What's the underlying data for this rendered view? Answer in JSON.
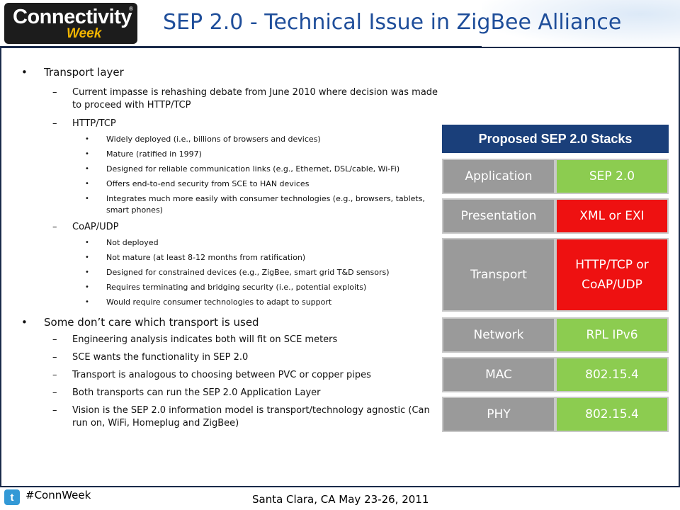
{
  "header": {
    "logo_main": "Connectivity",
    "logo_sub": "Week",
    "logo_tm": "®",
    "title": "SEP 2.0 - Technical Issue in ZigBee Alliance"
  },
  "content": {
    "transport_heading": "Transport layer",
    "impasse": "Current impasse is rehashing debate from June 2010 where decision was made to proceed with HTTP/TCP",
    "http_heading": "HTTP/TCP",
    "http_items": [
      "Widely deployed (i.e., billions of browsers and devices)",
      "Mature (ratified in 1997)",
      "Designed for reliable communication links (e.g., Ethernet, DSL/cable, Wi-Fi)",
      "Offers end-to-end security from SCE to HAN devices",
      "Integrates much more easily with consumer technologies (e.g., browsers, tablets, smart phones)"
    ],
    "coap_heading": "CoAP/UDP",
    "coap_items": [
      "Not deployed",
      "Not mature (at least 8-12 months from ratification)",
      "Designed for constrained devices (e.g., ZigBee, smart grid T&D sensors)",
      "Requires terminating and bridging security (i.e., potential exploits)",
      "Would require consumer technologies to adapt to support"
    ],
    "care_heading": "Some don’t care which transport is used",
    "care_items": [
      "Engineering analysis indicates both will fit on SCE meters",
      "SCE wants the functionality in SEP 2.0",
      "Transport is analogous to choosing between PVC or copper pipes",
      "Both transports can run the SEP 2.0 Application Layer",
      "Vision is the SEP 2.0 information model is transport/technology agnostic (Can run on, WiFi, Homeplug and ZigBee)"
    ]
  },
  "stack": {
    "title": "Proposed SEP 2.0 Stacks",
    "layers": [
      {
        "layer": "Application",
        "value": "SEP 2.0",
        "color": "#8ccc50"
      },
      {
        "layer": "Presentation",
        "value": "XML or EXI",
        "color": "#ee1111"
      },
      {
        "layer": "Transport",
        "value": "HTTP/TCP or CoAP/UDP",
        "color": "#ee1111"
      },
      {
        "layer": "Network",
        "value": "RPL IPv6",
        "color": "#8ccc50"
      },
      {
        "layer": "MAC",
        "value": "802.15.4",
        "color": "#8ccc50"
      },
      {
        "layer": "PHY",
        "value": "802.15.4",
        "color": "#8ccc50"
      }
    ]
  },
  "footer": {
    "icon": "twitter-icon",
    "icon_glyph": "t",
    "hashtag": "#ConnWeek",
    "location": "Santa Clara, CA May 23-26, 2011"
  }
}
